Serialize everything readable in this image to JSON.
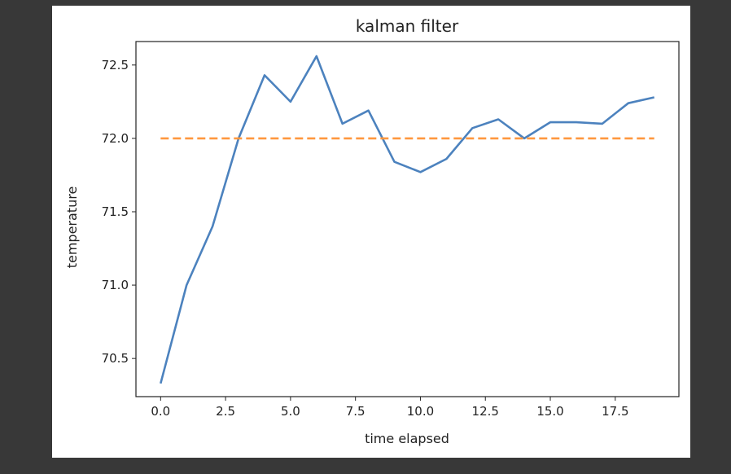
{
  "chart_data": {
    "type": "line",
    "title": "kalman filter",
    "xlabel": "time elapsed",
    "ylabel": "temperature",
    "xlim": [
      -0.95,
      19.95
    ],
    "ylim": [
      70.24,
      72.66
    ],
    "xticks": [
      "0.0",
      "2.5",
      "5.0",
      "7.5",
      "10.0",
      "12.5",
      "15.0",
      "17.5"
    ],
    "yticks": [
      "70.5",
      "71.0",
      "71.5",
      "72.0",
      "72.5"
    ],
    "grid": false,
    "series": [
      {
        "color": "#4c82be",
        "style": "solid",
        "x": [
          0,
          1,
          2,
          3,
          4,
          5,
          6,
          7,
          8,
          9,
          10,
          11,
          12,
          13,
          14,
          15,
          16,
          17,
          18,
          19
        ],
        "y": [
          70.33,
          71.0,
          71.4,
          72.0,
          72.43,
          72.25,
          72.56,
          72.1,
          72.19,
          71.84,
          71.77,
          71.86,
          72.07,
          72.13,
          72.0,
          72.11,
          72.11,
          72.1,
          72.24,
          72.28
        ]
      },
      {
        "color": "#ff983e",
        "style": "dashed",
        "x": [
          0,
          19
        ],
        "y": [
          72.0,
          72.0
        ]
      }
    ]
  }
}
